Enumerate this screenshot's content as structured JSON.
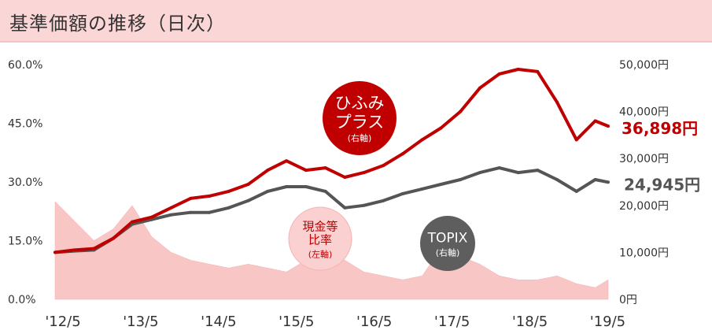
{
  "header": {
    "title": "基準価額の推移（日次）"
  },
  "chart_data": {
    "type": "line",
    "title": "基準価額の推移（日次）",
    "x_ticks": [
      "'12/5",
      "'13/5",
      "'14/5",
      "'15/5",
      "'16/5",
      "'17/5",
      "'18/5",
      "'19/5"
    ],
    "y_left_ticks": [
      "0.0%",
      "15.0%",
      "30.0%",
      "45.0%",
      "60.0%"
    ],
    "y_left_range": [
      0,
      60
    ],
    "y_right_ticks": [
      "0円",
      "10,000円",
      "20,000円",
      "30,000円",
      "40,000円",
      "50,000円"
    ],
    "y_right_range": [
      0,
      50000
    ],
    "x": [
      "2012-05",
      "2012-08",
      "2012-11",
      "2013-02",
      "2013-05",
      "2013-08",
      "2013-11",
      "2014-02",
      "2014-05",
      "2014-08",
      "2014-11",
      "2015-02",
      "2015-05",
      "2015-08",
      "2015-11",
      "2016-02",
      "2016-05",
      "2016-08",
      "2016-11",
      "2017-02",
      "2017-05",
      "2017-08",
      "2017-11",
      "2018-02",
      "2018-05",
      "2018-08",
      "2018-11",
      "2019-02",
      "2019-05",
      "2019-07"
    ],
    "series": [
      {
        "name": "ひふみプラス",
        "axis": "right",
        "color": "#c00000",
        "end_label": "36,898円",
        "values": [
          10000,
          10500,
          10800,
          13000,
          16500,
          17500,
          19500,
          21500,
          22000,
          23000,
          24500,
          27500,
          29500,
          27500,
          28000,
          26000,
          27000,
          28500,
          31000,
          34000,
          36500,
          40000,
          45000,
          48000,
          49000,
          48500,
          42000,
          34000,
          38000,
          36898
        ]
      },
      {
        "name": "TOPIX",
        "axis": "right",
        "color": "#555555",
        "end_label": "24,945円",
        "values": [
          10000,
          10300,
          10500,
          13000,
          16000,
          17000,
          18000,
          18500,
          18500,
          19500,
          21000,
          23000,
          24000,
          24000,
          23000,
          19500,
          20000,
          21000,
          22500,
          23500,
          24500,
          25500,
          27000,
          28000,
          27000,
          27500,
          25500,
          23000,
          25500,
          24945
        ]
      },
      {
        "name": "現金等比率",
        "axis": "left",
        "color": "#f9c6c6",
        "values": [
          25,
          20,
          15,
          18,
          24,
          16,
          12,
          10,
          9,
          8,
          9,
          8,
          7,
          10,
          12,
          10,
          7,
          6,
          5,
          6,
          13,
          11,
          9,
          6,
          5,
          5,
          6,
          4,
          3,
          5
        ]
      }
    ],
    "bubbles": [
      {
        "label_lines": [
          "ひふみ",
          "プラス"
        ],
        "note": "(右軸)",
        "color": "#c00000"
      },
      {
        "label_lines": [
          "現金等",
          "比率"
        ],
        "note": "(左軸)",
        "color": "#fbd0d0"
      },
      {
        "label_lines": [
          "TOPIX"
        ],
        "note": "(右軸)",
        "color": "#5e5e5e"
      }
    ],
    "grid": false
  }
}
